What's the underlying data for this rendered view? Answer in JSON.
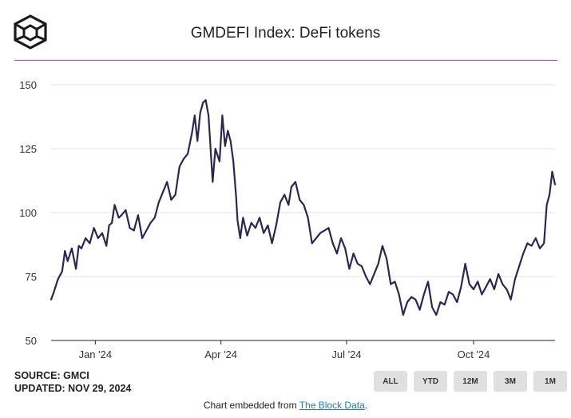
{
  "header": {
    "title": "GMDEFI Index: DeFi tokens"
  },
  "footer": {
    "source": "SOURCE: GMCI",
    "updated": "UPDATED: NOV 29, 2024",
    "embed_prefix": "Chart embedded from ",
    "embed_link": "The Block Data",
    "embed_suffix": "."
  },
  "range_buttons": [
    "ALL",
    "YTD",
    "12M",
    "3M",
    "1M"
  ],
  "colors": {
    "line": "#2a2850",
    "accent_rule": "#c040c0",
    "link": "#1a7fb5"
  },
  "chart_data": {
    "type": "line",
    "title": "GMDEFI Index: DeFi tokens",
    "xlabel": "",
    "ylabel": "",
    "ylim": [
      50,
      150
    ],
    "yticks": [
      50,
      75,
      100,
      125,
      150
    ],
    "xlim": [
      "2023-11-30",
      "2024-11-29"
    ],
    "xticks": [
      {
        "date": "2024-01-01",
        "label": "Jan '24"
      },
      {
        "date": "2024-04-01",
        "label": "Apr '24"
      },
      {
        "date": "2024-07-01",
        "label": "Jul '24"
      },
      {
        "date": "2024-10-01",
        "label": "Oct '24"
      }
    ],
    "grid": true,
    "series": [
      {
        "name": "GMDEFI",
        "x": [
          "2023-11-30",
          "2023-12-02",
          "2023-12-05",
          "2023-12-08",
          "2023-12-10",
          "2023-12-12",
          "2023-12-15",
          "2023-12-18",
          "2023-12-20",
          "2023-12-22",
          "2023-12-25",
          "2023-12-28",
          "2023-12-31",
          "2024-01-03",
          "2024-01-06",
          "2024-01-09",
          "2024-01-11",
          "2024-01-13",
          "2024-01-15",
          "2024-01-18",
          "2024-01-20",
          "2024-01-23",
          "2024-01-26",
          "2024-01-29",
          "2024-02-01",
          "2024-02-04",
          "2024-02-07",
          "2024-02-10",
          "2024-02-13",
          "2024-02-16",
          "2024-02-19",
          "2024-02-22",
          "2024-02-25",
          "2024-02-28",
          "2024-03-02",
          "2024-03-05",
          "2024-03-08",
          "2024-03-11",
          "2024-03-13",
          "2024-03-15",
          "2024-03-17",
          "2024-03-19",
          "2024-03-21",
          "2024-03-23",
          "2024-03-26",
          "2024-03-28",
          "2024-03-31",
          "2024-04-02",
          "2024-04-04",
          "2024-04-06",
          "2024-04-08",
          "2024-04-10",
          "2024-04-12",
          "2024-04-13",
          "2024-04-15",
          "2024-04-17",
          "2024-04-20",
          "2024-04-23",
          "2024-04-26",
          "2024-04-29",
          "2024-05-02",
          "2024-05-05",
          "2024-05-08",
          "2024-05-11",
          "2024-05-14",
          "2024-05-17",
          "2024-05-20",
          "2024-05-22",
          "2024-05-25",
          "2024-05-28",
          "2024-05-31",
          "2024-06-03",
          "2024-06-06",
          "2024-06-09",
          "2024-06-12",
          "2024-06-15",
          "2024-06-18",
          "2024-06-21",
          "2024-06-24",
          "2024-06-27",
          "2024-06-30",
          "2024-07-03",
          "2024-07-06",
          "2024-07-09",
          "2024-07-12",
          "2024-07-15",
          "2024-07-18",
          "2024-07-21",
          "2024-07-24",
          "2024-07-27",
          "2024-07-30",
          "2024-08-02",
          "2024-08-05",
          "2024-08-08",
          "2024-08-11",
          "2024-08-14",
          "2024-08-17",
          "2024-08-20",
          "2024-08-23",
          "2024-08-26",
          "2024-08-29",
          "2024-09-01",
          "2024-09-04",
          "2024-09-07",
          "2024-09-10",
          "2024-09-13",
          "2024-09-16",
          "2024-09-19",
          "2024-09-22",
          "2024-09-25",
          "2024-09-28",
          "2024-10-01",
          "2024-10-04",
          "2024-10-07",
          "2024-10-10",
          "2024-10-13",
          "2024-10-16",
          "2024-10-19",
          "2024-10-22",
          "2024-10-25",
          "2024-10-28",
          "2024-10-31",
          "2024-11-03",
          "2024-11-06",
          "2024-11-09",
          "2024-11-12",
          "2024-11-15",
          "2024-11-18",
          "2024-11-21",
          "2024-11-23",
          "2024-11-25",
          "2024-11-27",
          "2024-11-29"
        ],
        "values": [
          66,
          69,
          74,
          77,
          85,
          81,
          86,
          78,
          87,
          86,
          90,
          88,
          94,
          90,
          92,
          87,
          95,
          96,
          103,
          98,
          99,
          101,
          94,
          93,
          99,
          90,
          93,
          96,
          98,
          104,
          108,
          112,
          105,
          107,
          118,
          121,
          123,
          131,
          138,
          128,
          139,
          143,
          144,
          138,
          112,
          125,
          120,
          138,
          126,
          132,
          128,
          120,
          106,
          97,
          90,
          98,
          91,
          96,
          94,
          98,
          92,
          95,
          88,
          95,
          104,
          107,
          103,
          110,
          112,
          105,
          103,
          98,
          88,
          90,
          92,
          93,
          94,
          88,
          84,
          90,
          86,
          78,
          84,
          80,
          79,
          75,
          72,
          76,
          80,
          87,
          82,
          72,
          73,
          68,
          60,
          65,
          67,
          66,
          62,
          68,
          73,
          63,
          60,
          65,
          64,
          69,
          68,
          65,
          71,
          80,
          72,
          70,
          73,
          68,
          71,
          74,
          70,
          76,
          72,
          70,
          66,
          74,
          79,
          84,
          88,
          87,
          90,
          86,
          88,
          103,
          107,
          116,
          111
        ]
      }
    ]
  }
}
